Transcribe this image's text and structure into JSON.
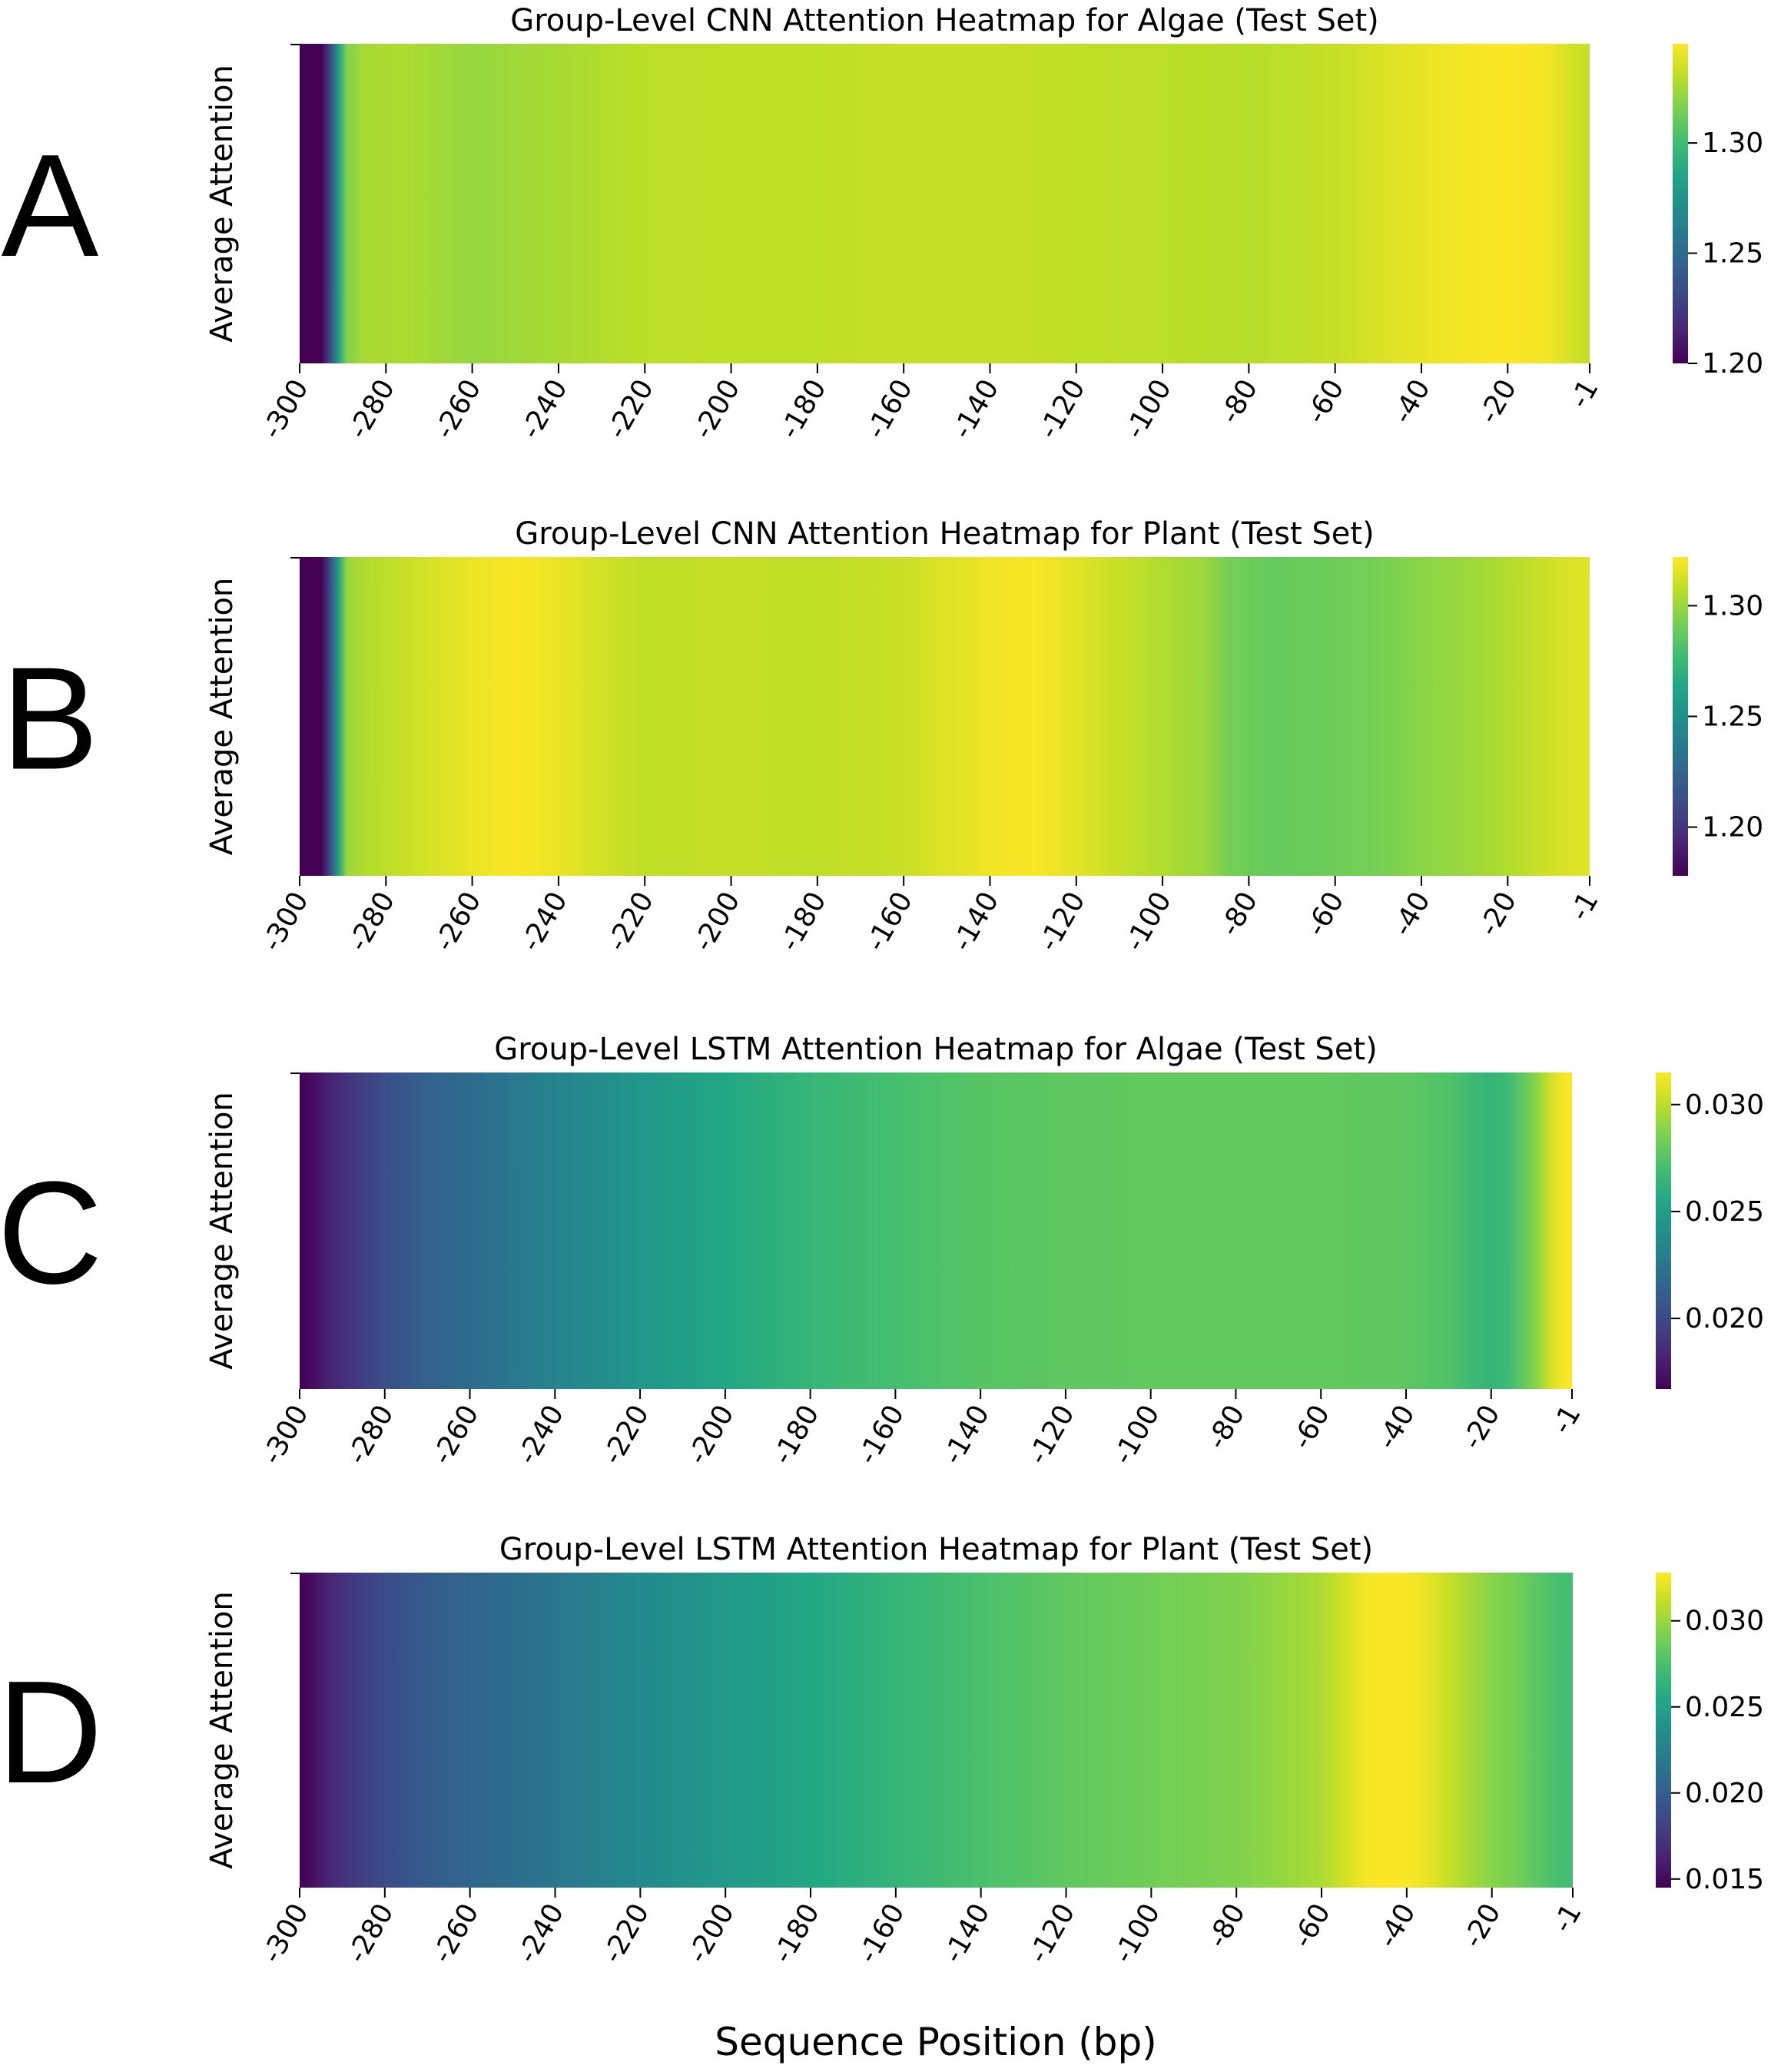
{
  "figure": {
    "xlabel": "Sequence Position (bp)"
  },
  "chart_data": [
    {
      "type": "heatmap",
      "panel": "A",
      "title": "Group-Level CNN Attention Heatmap for Algae (Test Set)",
      "ylabel": "Average Attention",
      "xlabel": "",
      "colormap": "viridis",
      "x_ticks": [
        -300,
        -280,
        -260,
        -240,
        -220,
        -200,
        -180,
        -160,
        -140,
        -120,
        -100,
        -80,
        -60,
        -40,
        -20,
        -1
      ],
      "colorbar": {
        "min": 1.2,
        "max": 1.345,
        "ticks": [
          1.2,
          1.25,
          1.3
        ]
      },
      "x": [
        -300,
        -297,
        -295,
        -293,
        -291,
        -289,
        -285,
        -275,
        -260,
        -250,
        -240,
        -220,
        -200,
        -180,
        -160,
        -140,
        -120,
        -100,
        -80,
        -60,
        -50,
        -40,
        -30,
        -20,
        -10,
        -5,
        -1
      ],
      "values": [
        1.2,
        1.2,
        1.2,
        1.23,
        1.28,
        1.317,
        1.326,
        1.327,
        1.322,
        1.324,
        1.326,
        1.33,
        1.331,
        1.331,
        1.332,
        1.332,
        1.331,
        1.33,
        1.329,
        1.332,
        1.337,
        1.34,
        1.343,
        1.345,
        1.342,
        1.335,
        1.332
      ]
    },
    {
      "type": "heatmap",
      "panel": "B",
      "title": "Group-Level CNN Attention Heatmap for Plant (Test Set)",
      "ylabel": "Average Attention",
      "xlabel": "",
      "colormap": "viridis",
      "x_ticks": [
        -300,
        -280,
        -260,
        -240,
        -220,
        -200,
        -180,
        -160,
        -140,
        -120,
        -100,
        -80,
        -60,
        -40,
        -20,
        -1
      ],
      "colorbar": {
        "min": 1.178,
        "max": 1.322,
        "ticks": [
          1.2,
          1.25,
          1.3
        ]
      },
      "x": [
        -300,
        -297,
        -295,
        -293,
        -291,
        -289,
        -285,
        -275,
        -260,
        -250,
        -240,
        -230,
        -220,
        -200,
        -180,
        -160,
        -150,
        -140,
        -130,
        -120,
        -110,
        -100,
        -90,
        -85,
        -75,
        -65,
        -50,
        -40,
        -30,
        -20,
        -10,
        -1
      ],
      "values": [
        1.178,
        1.178,
        1.178,
        1.21,
        1.26,
        1.3,
        1.305,
        1.31,
        1.318,
        1.321,
        1.318,
        1.312,
        1.308,
        1.309,
        1.308,
        1.31,
        1.315,
        1.319,
        1.321,
        1.316,
        1.31,
        1.305,
        1.3,
        1.292,
        1.288,
        1.289,
        1.292,
        1.297,
        1.3,
        1.305,
        1.312,
        1.316
      ]
    },
    {
      "type": "heatmap",
      "panel": "C",
      "title": "Group-Level LSTM Attention Heatmap for Algae (Test Set)",
      "ylabel": "Average Attention",
      "xlabel": "",
      "colormap": "viridis",
      "x_ticks": [
        -300,
        -280,
        -260,
        -240,
        -220,
        -200,
        -180,
        -160,
        -140,
        -120,
        -100,
        -80,
        -60,
        -40,
        -20,
        -1
      ],
      "colorbar": {
        "min": 0.0167,
        "max": 0.0315,
        "ticks": [
          0.02,
          0.025,
          0.03
        ]
      },
      "x": [
        -300,
        -297,
        -293,
        -288,
        -280,
        -270,
        -260,
        -240,
        -220,
        -200,
        -180,
        -160,
        -140,
        -120,
        -100,
        -80,
        -60,
        -40,
        -30,
        -24,
        -20,
        -16,
        -12,
        -9,
        -6,
        -3,
        -1
      ],
      "values": [
        0.0167,
        0.0172,
        0.0182,
        0.019,
        0.0203,
        0.0213,
        0.0219,
        0.0233,
        0.0245,
        0.0256,
        0.0265,
        0.0271,
        0.0276,
        0.0278,
        0.0279,
        0.0279,
        0.0279,
        0.0278,
        0.0274,
        0.0267,
        0.0264,
        0.0268,
        0.028,
        0.029,
        0.0305,
        0.0313,
        0.0315
      ]
    },
    {
      "type": "heatmap",
      "panel": "D",
      "title": "Group-Level LSTM Attention Heatmap for Plant (Test Set)",
      "ylabel": "Average Attention",
      "xlabel": "",
      "colormap": "viridis",
      "x_ticks": [
        -300,
        -280,
        -260,
        -240,
        -220,
        -200,
        -180,
        -160,
        -140,
        -120,
        -100,
        -80,
        -60,
        -40,
        -20,
        -1
      ],
      "colorbar": {
        "min": 0.0145,
        "max": 0.0328,
        "ticks": [
          0.015,
          0.02,
          0.025,
          0.03
        ]
      },
      "x": [
        -300,
        -297,
        -293,
        -288,
        -280,
        -270,
        -260,
        -240,
        -220,
        -200,
        -180,
        -160,
        -140,
        -120,
        -100,
        -80,
        -70,
        -60,
        -55,
        -50,
        -45,
        -40,
        -35,
        -30,
        -25,
        -20,
        -15,
        -10,
        -5,
        -1
      ],
      "values": [
        0.0145,
        0.0152,
        0.0165,
        0.0175,
        0.0188,
        0.0198,
        0.0205,
        0.0217,
        0.0232,
        0.0244,
        0.0255,
        0.0265,
        0.0275,
        0.0283,
        0.0288,
        0.0293,
        0.0298,
        0.0305,
        0.0315,
        0.0325,
        0.0328,
        0.0327,
        0.0322,
        0.0312,
        0.0303,
        0.0295,
        0.029,
        0.0282,
        0.0274,
        0.0272
      ]
    }
  ]
}
